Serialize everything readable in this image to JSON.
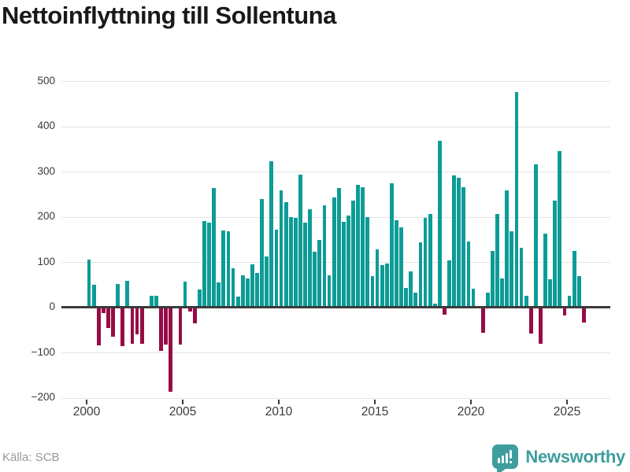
{
  "title": "Nettoinflyttning till Sollentuna",
  "source": "Källa: SCB",
  "branding": {
    "name": "Newsworthy",
    "badge_icon": "bar-chart-exclamation-pin"
  },
  "colors": {
    "positive": "#0d9c96",
    "negative": "#970c45",
    "grid": "#e4e4e4",
    "zero_line": "#3b3b3b",
    "title_text": "#191919",
    "axis_text": "#3a3a3a",
    "source_text": "#989898",
    "brand": "#3f9d9d",
    "background": "#ffffff"
  },
  "chart_data": {
    "type": "bar",
    "title": "Nettoinflyttning till Sollentuna",
    "frequency": "quarterly",
    "x_start": "2000 Q1",
    "x_end": "2025 Q4",
    "start_year": 2000,
    "end_year": 2025,
    "xlabel": "",
    "ylabel": "",
    "ylim": [
      -200,
      500
    ],
    "grid": "horizontal",
    "legend": "none",
    "y_ticks": [
      500,
      400,
      300,
      200,
      100,
      0,
      -100,
      -200
    ],
    "y_tick_labels": [
      "500",
      "400",
      "300",
      "200",
      "100",
      "0",
      "−100",
      "−200"
    ],
    "x_tick_labels": [
      "2000",
      "2005",
      "2010",
      "2015",
      "2020",
      "2025"
    ],
    "values": [
      105,
      50,
      -82,
      -12,
      -45,
      -64,
      52,
      -85,
      58,
      -79,
      -58,
      -79,
      0,
      25,
      25,
      -95,
      -80,
      -185,
      0,
      -80,
      56,
      -8,
      -33,
      40,
      191,
      187,
      264,
      55,
      169,
      168,
      86,
      23,
      70,
      64,
      95,
      76,
      240,
      112,
      323,
      172,
      259,
      232,
      200,
      197,
      293,
      187,
      217,
      122,
      148,
      225,
      70,
      242,
      264,
      188,
      202,
      236,
      271,
      265,
      200,
      68,
      128,
      93,
      96,
      274,
      193,
      176,
      42,
      79,
      32,
      144,
      198,
      207,
      8,
      368,
      -14,
      103,
      291,
      287,
      266,
      145,
      41,
      0,
      -55,
      32,
      124,
      207,
      64,
      258,
      168,
      475,
      132,
      25,
      -56,
      315,
      -79,
      162,
      61,
      235,
      346,
      -16,
      25,
      125,
      68,
      -32
    ]
  }
}
